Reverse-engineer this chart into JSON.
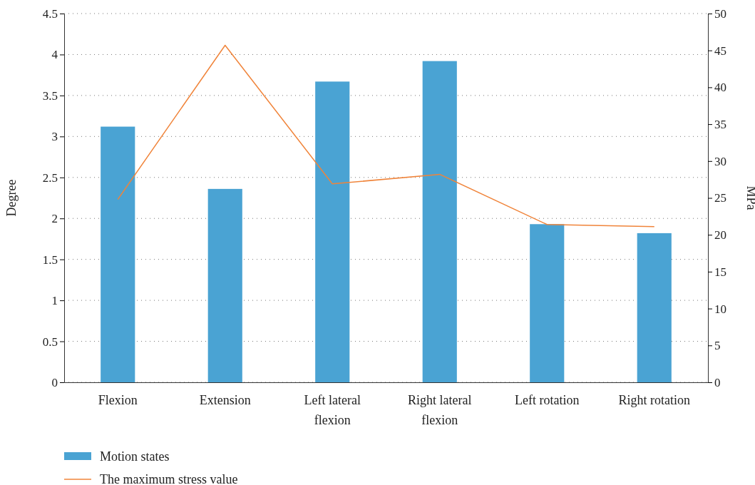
{
  "chart_data": {
    "type": "bar",
    "ylabel": "Degree",
    "y2label": "MPa",
    "categories": [
      "Flexion",
      "Extension",
      "Left lateral flexion",
      "Right lateral flexion",
      "Left rotation",
      "Right rotation"
    ],
    "series": [
      {
        "name": "Motion states",
        "color": "#4aa3d3",
        "values": [
          3.12,
          2.36,
          3.67,
          3.92,
          1.93,
          1.82
        ]
      },
      {
        "name": "The maximum stress value",
        "type": "line",
        "axis": "y2",
        "color": "#f0843a",
        "values": [
          24.8,
          45.7,
          26.9,
          28.2,
          21.4,
          21.1
        ]
      }
    ],
    "ylim": [
      0,
      4.5
    ],
    "yticks": [
      0,
      0.5,
      1,
      1.5,
      2,
      2.5,
      3,
      3.5,
      4,
      4.5
    ],
    "y2lim": [
      0,
      50
    ],
    "y2ticks": [
      0,
      5,
      10,
      15,
      20,
      25,
      30,
      35,
      40,
      45,
      50
    ],
    "grid": "y",
    "legend": "bottom left",
    "marker": "none",
    "line_style": "solid"
  }
}
